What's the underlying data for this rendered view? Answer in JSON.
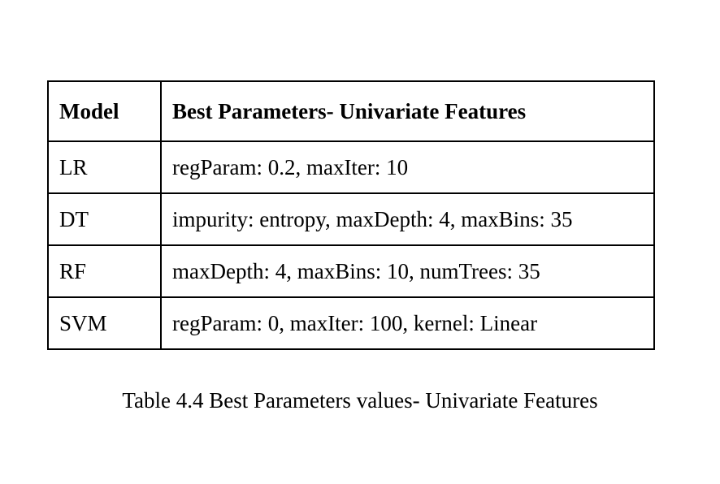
{
  "table": {
    "headers": [
      "Model",
      "Best Parameters- Univariate Features"
    ],
    "rows": [
      [
        "LR",
        "regParam: 0.2, maxIter: 10"
      ],
      [
        "DT",
        "impurity: entropy, maxDepth: 4, maxBins: 35"
      ],
      [
        "RF",
        "maxDepth: 4, maxBins: 10, numTrees: 35"
      ],
      [
        "SVM",
        "regParam: 0, maxIter: 100, kernel: Linear"
      ]
    ]
  },
  "caption": "Table 4.4 Best Parameters values- Univariate Features"
}
